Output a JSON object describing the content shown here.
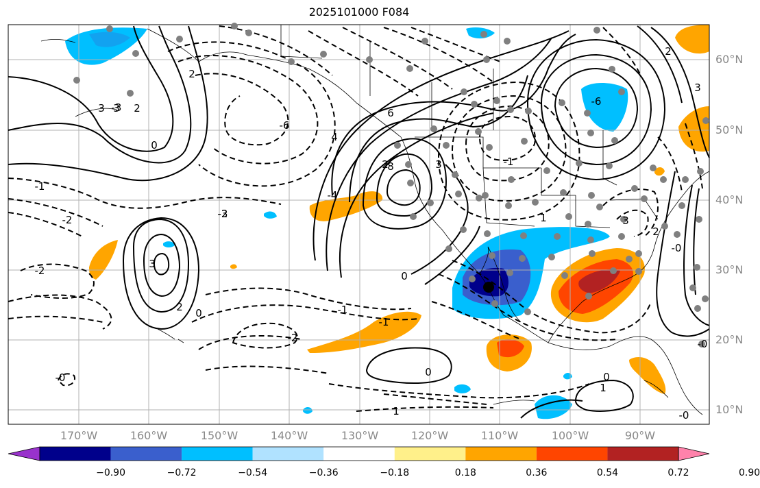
{
  "title": "2025101000 F084",
  "lat_labels": [
    "60°N",
    "50°N",
    "40°N",
    "30°N",
    "20°N",
    "10°N"
  ],
  "lon_labels": [
    "170°W",
    "160°W",
    "150°W",
    "140°W",
    "130°W",
    "120°W",
    "110°W",
    "100°W",
    "90°W"
  ],
  "colorbar": {
    "labels": [
      "−0.90",
      "−0.72",
      "−0.54",
      "−0.36",
      "−0.18",
      "0.18",
      "0.36",
      "0.54",
      "0.72",
      "0.90"
    ],
    "colors": [
      "#9932cc",
      "#00008b",
      "#3a5fcd",
      "#00bfff",
      "#b0e2ff",
      "#ffffff",
      "#fff08a",
      "#ffa500",
      "#ff4500",
      "#b22222",
      "#ff82ab"
    ],
    "extend": "both"
  },
  "contour_labels": [
    "3",
    "2",
    "0",
    "-1",
    "-2",
    "-3",
    "6",
    "-6",
    "8",
    "4",
    "-4",
    "-2",
    "3",
    "2",
    "0",
    "-1",
    "-2",
    "-1",
    "0",
    "0",
    "1",
    "3",
    "2",
    "-0",
    "-0",
    "0",
    "1",
    "2",
    "3",
    "-1",
    "-2",
    "-3",
    "-6",
    "3",
    "3",
    "2",
    "-0",
    "-0",
    "1",
    "2"
  ],
  "colors": {
    "land_outline": "#000000",
    "grid": "#b0b0b0",
    "station": "#808080",
    "label": "#888888"
  }
}
